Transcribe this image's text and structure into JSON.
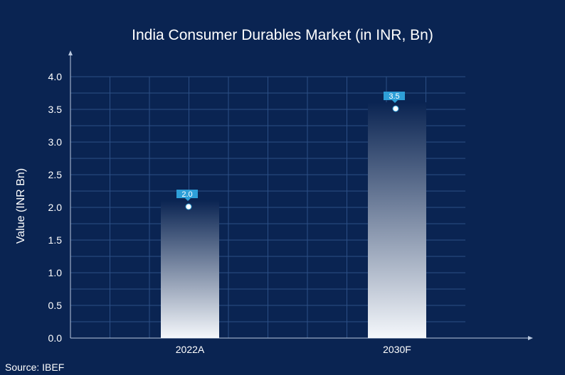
{
  "chart_data": {
    "type": "bar",
    "title": "India Consumer Durables Market (in INR, Bn)",
    "ylabel": "Value (INR Bn)",
    "xlabel": "",
    "categories": [
      "2022A",
      "2030F"
    ],
    "values": [
      2.0,
      3.5
    ],
    "data_labels": [
      "2.0",
      "3.5"
    ],
    "y_ticks": [
      "0.0",
      "0.5",
      "1.0",
      "1.5",
      "2.0",
      "2.5",
      "3.0",
      "3.5",
      "4.0"
    ],
    "ylim": [
      0,
      4.0
    ],
    "grid": true,
    "legend": "none"
  },
  "footer": {
    "source": "Source: IBEF"
  },
  "colors": {
    "background": "#0a2452",
    "bar_top": "#0a2452",
    "bar_bottom": "#f4f7fb",
    "label_box": "#2e9fd8",
    "grid": "#2c4f86",
    "axis": "#b9c8de"
  }
}
